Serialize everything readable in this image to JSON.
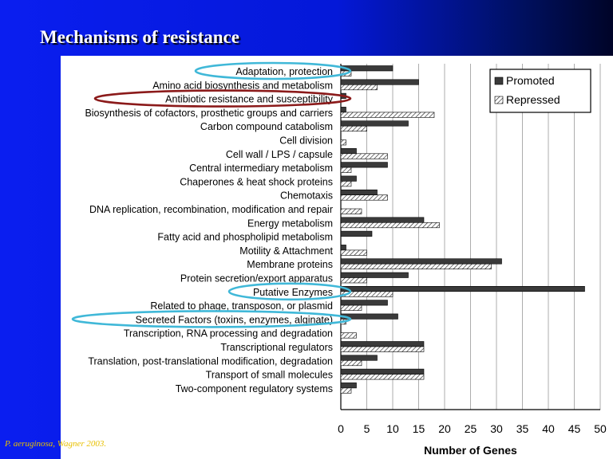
{
  "slide": {
    "title": "Mechanisms of resistance",
    "credit": "P. aeruginosa, Wagner 2003."
  },
  "chart_data": {
    "type": "bar",
    "orientation": "horizontal",
    "xlabel": "Number of Genes",
    "xlim": [
      0,
      50
    ],
    "xticks": [
      0,
      5,
      10,
      15,
      20,
      25,
      30,
      35,
      40,
      45,
      50
    ],
    "grid": true,
    "legend_position": "top-right",
    "categories": [
      "Adaptation, protection",
      "Amino acid biosynthesis and metabolism",
      "Antibiotic resistance and susceptibility",
      "Biosynthesis of cofactors, prosthetic groups and carriers",
      "Carbon compound catabolism",
      "Cell division",
      "Cell wall / LPS / capsule",
      "Central intermediary metabolism",
      "Chaperones & heat shock proteins",
      "Chemotaxis",
      "DNA replication, recombination, modification and repair",
      "Energy metabolism",
      "Fatty acid and phospholipid metabolism",
      "Motility & Attachment",
      "Membrane proteins",
      "Protein secretion/export apparatus",
      "Putative Enzymes",
      "Related to phage, transposon, or plasmid",
      "Secreted Factors (toxins, enzymes, alginate)",
      "Transcription, RNA processing and degradation",
      "Transcriptional regulators",
      "Translation, post-translational modification, degradation",
      "Transport of small molecules",
      "Two-component regulatory systems"
    ],
    "series": [
      {
        "name": "Promoted",
        "color": "#3a3a3a",
        "values": [
          10,
          15,
          1,
          1,
          13,
          0,
          3,
          9,
          3,
          7,
          0,
          16,
          6,
          1,
          31,
          13,
          47,
          9,
          11,
          0,
          16,
          7,
          16,
          3
        ]
      },
      {
        "name": "Repressed",
        "color": "#ffffff",
        "pattern": "hatched",
        "values": [
          2,
          7,
          0,
          18,
          5,
          1,
          9,
          2,
          2,
          9,
          4,
          19,
          0,
          5,
          29,
          5,
          10,
          4,
          1,
          3,
          16,
          4,
          16,
          2
        ]
      }
    ],
    "highlights": [
      {
        "category": "Adaptation, protection",
        "color": "#40b8d8"
      },
      {
        "category": "Antibiotic resistance and susceptibility",
        "color": "#8b1a1a"
      },
      {
        "category": "Putative Enzymes",
        "color": "#40b8d8"
      },
      {
        "category": "Secreted Factors (toxins, enzymes, alginate)",
        "color": "#40b8d8"
      }
    ]
  }
}
